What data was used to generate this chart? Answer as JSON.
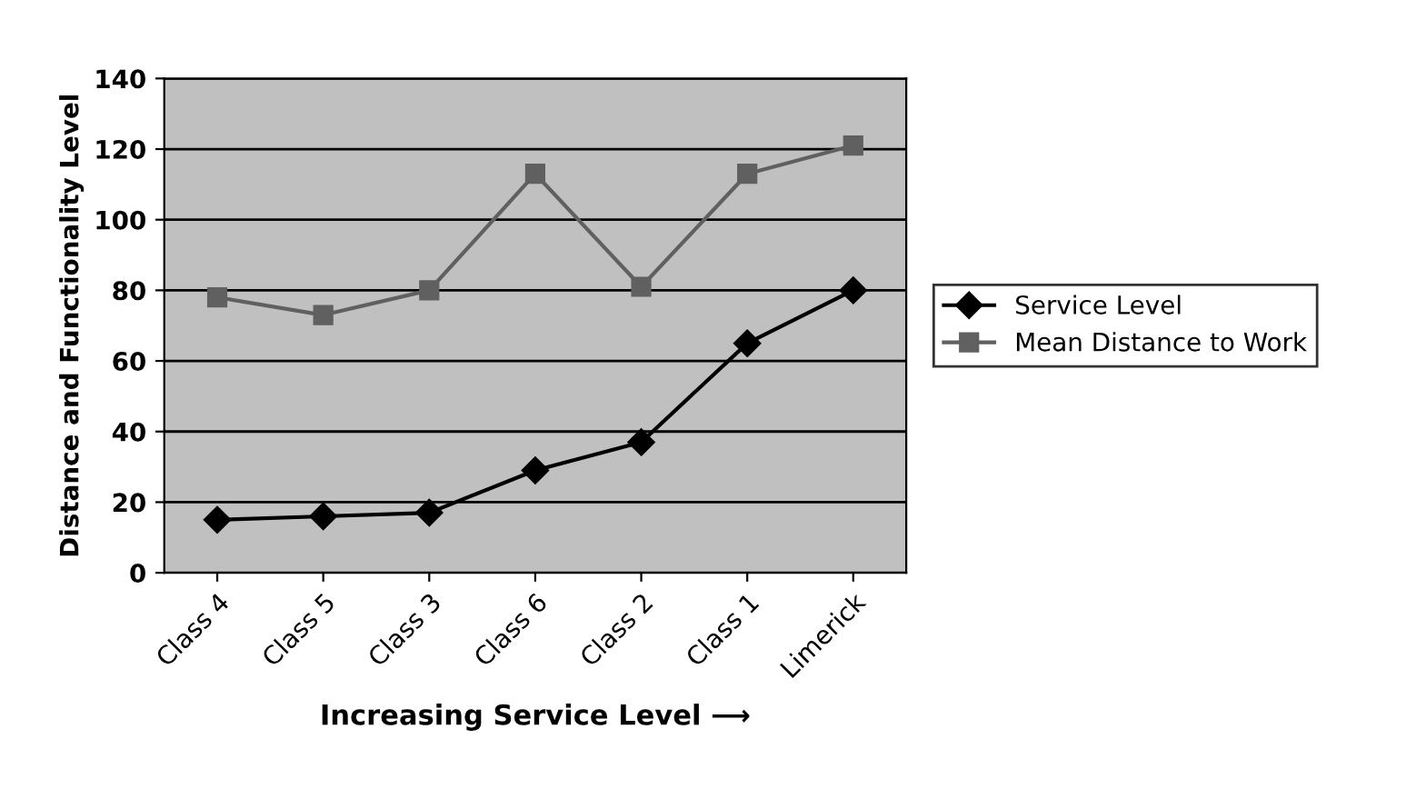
{
  "chart_data": {
    "type": "line",
    "xlabel": "Increasing Service Level ⟶",
    "ylabel": "Distance and Functionality Level",
    "categories": [
      "Class 4",
      "Class 5",
      "Class 3",
      "Class 6",
      "Class 2",
      "Class 1",
      "Limerick"
    ],
    "series": [
      {
        "name": "Service Level",
        "color": "#000000",
        "marker": "diamond",
        "values": [
          15,
          16,
          17,
          29,
          37,
          65,
          80
        ]
      },
      {
        "name": "Mean Distance to Work",
        "color": "#606060",
        "marker": "square",
        "values": [
          78,
          73,
          80,
          113,
          81,
          113,
          121
        ]
      }
    ],
    "ylim": [
      0,
      140
    ],
    "yticks": [
      0,
      20,
      40,
      60,
      80,
      100,
      120,
      140
    ],
    "grid": "y",
    "legend": "right",
    "line_style": "solid"
  }
}
